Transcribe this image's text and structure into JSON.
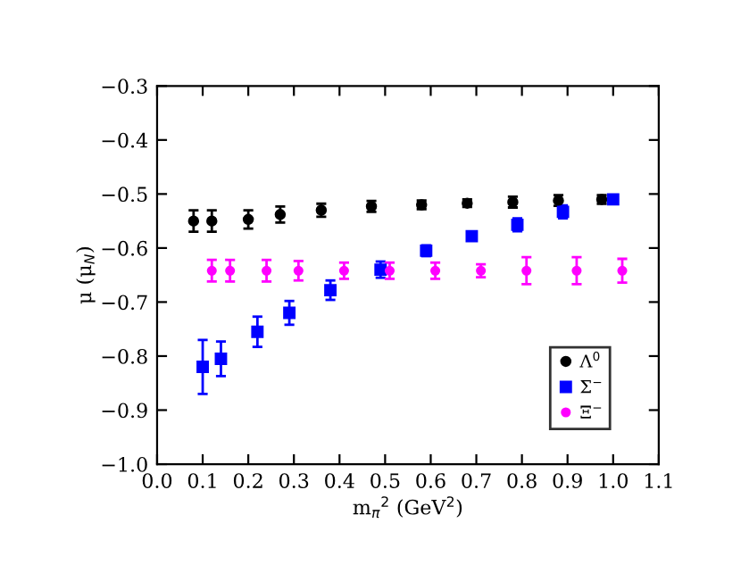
{
  "chart_data": {
    "type": "scatter",
    "xlabel": "m$_{π}$$^{2}$ (GeV$^{2}$)",
    "ylabel": "μ (μ$_{N}$)",
    "xlim": [
      0.0,
      1.1
    ],
    "ylim": [
      -1.0,
      -0.3
    ],
    "xticks": [
      {
        "value": 0.0,
        "label": "0.0"
      },
      {
        "value": 0.1,
        "label": "0.1"
      },
      {
        "value": 0.2,
        "label": "0.2"
      },
      {
        "value": 0.3,
        "label": "0.3"
      },
      {
        "value": 0.4,
        "label": "0.4"
      },
      {
        "value": 0.5,
        "label": "0.5"
      },
      {
        "value": 0.6,
        "label": "0.6"
      },
      {
        "value": 0.7,
        "label": "0.7"
      },
      {
        "value": 0.8,
        "label": "0.8"
      },
      {
        "value": 0.9,
        "label": "0.9"
      },
      {
        "value": 1.0,
        "label": "1.0"
      },
      {
        "value": 1.1,
        "label": "1.1"
      }
    ],
    "yticks": [
      {
        "value": -1.0,
        "label": "−1.0"
      },
      {
        "value": -0.9,
        "label": "−0.9"
      },
      {
        "value": -0.8,
        "label": "−0.8"
      },
      {
        "value": -0.7,
        "label": "−0.7"
      },
      {
        "value": -0.6,
        "label": "−0.6"
      },
      {
        "value": -0.5,
        "label": "−0.5"
      },
      {
        "value": -0.4,
        "label": "−0.4"
      },
      {
        "value": -0.3,
        "label": "−0.3"
      }
    ],
    "grid": false,
    "legend": "bottom right",
    "series": [
      {
        "name": "Λ$^{0}$",
        "color": "#000000",
        "marker": "circle",
        "x": [
          0.08,
          0.12,
          0.2,
          0.27,
          0.36,
          0.47,
          0.58,
          0.68,
          0.78,
          0.88,
          0.975
        ],
        "values": [
          -0.55,
          -0.55,
          -0.547,
          -0.538,
          -0.53,
          -0.523,
          -0.52,
          -0.517,
          -0.515,
          -0.512,
          -0.51
        ],
        "errors": [
          0.02,
          0.02,
          0.017,
          0.015,
          0.012,
          0.01,
          0.008,
          0.007,
          0.01,
          0.01,
          0.008
        ]
      },
      {
        "name": "Σ$^{−}$",
        "color": "#0000ff",
        "marker": "square",
        "x": [
          0.1,
          0.14,
          0.22,
          0.29,
          0.38,
          0.49,
          0.59,
          0.69,
          0.79,
          0.89,
          1.0
        ],
        "values": [
          -0.82,
          -0.805,
          -0.755,
          -0.72,
          -0.678,
          -0.64,
          -0.605,
          -0.578,
          -0.557,
          -0.533,
          -0.51
        ],
        "errors": [
          0.05,
          0.032,
          0.028,
          0.022,
          0.018,
          0.015,
          0.01,
          0.008,
          0.012,
          0.012,
          0.006
        ]
      },
      {
        "name": "Ξ$^{−}$",
        "color": "#ff00ff",
        "marker": "circle",
        "x": [
          0.12,
          0.16,
          0.24,
          0.31,
          0.41,
          0.51,
          0.61,
          0.71,
          0.81,
          0.92,
          1.02
        ],
        "values": [
          -0.642,
          -0.642,
          -0.642,
          -0.642,
          -0.642,
          -0.642,
          -0.642,
          -0.642,
          -0.642,
          -0.642,
          -0.642
        ],
        "errors": [
          0.02,
          0.02,
          0.02,
          0.018,
          0.015,
          0.015,
          0.015,
          0.012,
          0.025,
          0.025,
          0.022
        ]
      }
    ]
  }
}
